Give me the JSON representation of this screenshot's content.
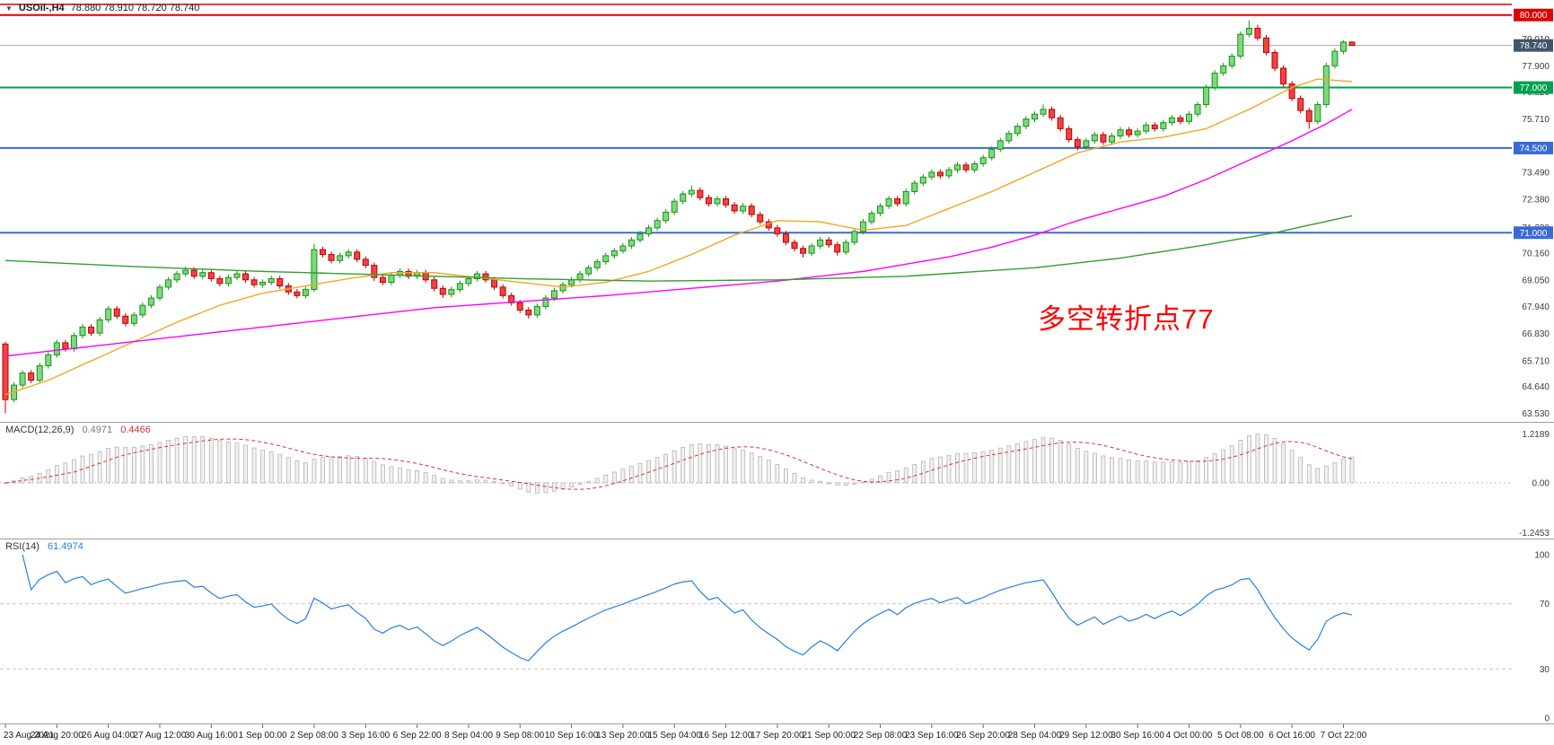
{
  "window": {
    "dropdown_icon": "▼",
    "symbol_title": "USOil-,H4",
    "ohlc_text": "78.880 78.910 78.720 78.740"
  },
  "colors": {
    "up_stroke": "#149414",
    "up_fill": "#7fd87f",
    "down_stroke": "#c00000",
    "down_fill": "#ef4444",
    "current_line": "#a8a8a8",
    "current_badge": "#42566b",
    "macd_hist_fill": "#f2f2f2",
    "macd_hist_stroke": "#b4b4b4",
    "macd_signal": "#e03030",
    "rsi_line": "#2a7fde",
    "level_dash": "#c8c8c8",
    "divider": "#9e9e9e",
    "axis_text": "#3a3a3a",
    "zero_dot": "#bbbbbb"
  },
  "chart_data": {
    "type": "candlestick",
    "symbol": "USOil-",
    "timeframe": "H4",
    "title": "USOil-,H4",
    "current_bar": {
      "open": 78.88,
      "high": 78.91,
      "low": 78.72,
      "close": 78.74
    },
    "price_axis": {
      "max": 80.62,
      "min": 63.18,
      "labels": [
        "79.010",
        "77.900",
        "76.820",
        "75.710",
        "73.490",
        "72.380",
        "71.220",
        "70.160",
        "69.050",
        "67.940",
        "66.830",
        "65.710",
        "64.640",
        "63.530"
      ]
    },
    "hlines": [
      {
        "price": 80.44,
        "label": "",
        "color": "#e00000",
        "width": 1.5
      },
      {
        "price": 80.0,
        "label": "80.000",
        "color": "#e00000",
        "width": 2
      },
      {
        "price": 77.0,
        "label": "77.000",
        "color": "#00a050",
        "width": 2
      },
      {
        "price": 74.5,
        "label": "74.500",
        "color": "#3a6ad4",
        "width": 2
      },
      {
        "price": 71.0,
        "label": "71.000",
        "color": "#3a6ad4",
        "width": 2
      }
    ],
    "current_price_line": {
      "price": 78.74,
      "label": "78.740"
    },
    "annotation": {
      "text": "多空转折点77",
      "color": "#ff0000"
    },
    "ma_lines": [
      {
        "name": "ma-fast-orange",
        "color": "#f5a623",
        "points": [
          [
            0,
            64.3
          ],
          [
            5,
            64.9
          ],
          [
            10,
            65.7
          ],
          [
            15,
            66.5
          ],
          [
            20,
            67.3
          ],
          [
            25,
            68.0
          ],
          [
            30,
            68.5
          ],
          [
            35,
            68.8
          ],
          [
            40,
            69.1
          ],
          [
            45,
            69.35
          ],
          [
            50,
            69.35
          ],
          [
            55,
            69.15
          ],
          [
            60,
            68.95
          ],
          [
            65,
            68.75
          ],
          [
            70,
            68.95
          ],
          [
            75,
            69.4
          ],
          [
            80,
            70.1
          ],
          [
            85,
            70.9
          ],
          [
            90,
            71.5
          ],
          [
            95,
            71.45
          ],
          [
            100,
            71.1
          ],
          [
            105,
            71.3
          ],
          [
            110,
            72.0
          ],
          [
            115,
            72.7
          ],
          [
            120,
            73.5
          ],
          [
            125,
            74.3
          ],
          [
            130,
            74.75
          ],
          [
            135,
            74.95
          ],
          [
            140,
            75.3
          ],
          [
            145,
            76.1
          ],
          [
            150,
            77.0
          ],
          [
            153,
            77.35
          ],
          [
            157,
            77.25
          ]
        ]
      },
      {
        "name": "ma-mid-magenta",
        "color": "#ff00ff",
        "points": [
          [
            0,
            65.9
          ],
          [
            10,
            66.3
          ],
          [
            20,
            66.7
          ],
          [
            30,
            67.1
          ],
          [
            40,
            67.5
          ],
          [
            50,
            67.9
          ],
          [
            60,
            68.15
          ],
          [
            70,
            68.4
          ],
          [
            80,
            68.7
          ],
          [
            90,
            69.0
          ],
          [
            100,
            69.4
          ],
          [
            110,
            70.0
          ],
          [
            115,
            70.4
          ],
          [
            120,
            70.9
          ],
          [
            125,
            71.5
          ],
          [
            130,
            72.0
          ],
          [
            135,
            72.5
          ],
          [
            140,
            73.2
          ],
          [
            145,
            74.0
          ],
          [
            150,
            74.8
          ],
          [
            154,
            75.5
          ],
          [
            157,
            76.1
          ]
        ]
      },
      {
        "name": "ma-slow-green",
        "color": "#33a02c",
        "points": [
          [
            0,
            69.85
          ],
          [
            15,
            69.6
          ],
          [
            30,
            69.4
          ],
          [
            45,
            69.25
          ],
          [
            60,
            69.1
          ],
          [
            75,
            69.0
          ],
          [
            90,
            69.05
          ],
          [
            105,
            69.2
          ],
          [
            120,
            69.55
          ],
          [
            130,
            69.95
          ],
          [
            140,
            70.5
          ],
          [
            148,
            71.0
          ],
          [
            157,
            71.7
          ]
        ]
      }
    ],
    "candles": [
      [
        66.4,
        66.5,
        63.53,
        64.1
      ],
      [
        64.1,
        64.82,
        63.98,
        64.7
      ],
      [
        64.7,
        65.32,
        64.58,
        65.2
      ],
      [
        65.2,
        65.32,
        64.78,
        64.9
      ],
      [
        64.9,
        65.62,
        64.78,
        65.5
      ],
      [
        65.5,
        66.07,
        65.38,
        65.95
      ],
      [
        65.95,
        66.57,
        65.83,
        66.45
      ],
      [
        66.45,
        66.57,
        66.08,
        66.2
      ],
      [
        66.2,
        66.87,
        66.08,
        66.75
      ],
      [
        66.75,
        67.22,
        66.63,
        67.1
      ],
      [
        67.1,
        67.22,
        66.73,
        66.85
      ],
      [
        66.85,
        67.52,
        66.73,
        67.4
      ],
      [
        67.4,
        67.97,
        67.28,
        67.85
      ],
      [
        67.85,
        67.97,
        67.43,
        67.55
      ],
      [
        67.55,
        67.67,
        67.13,
        67.25
      ],
      [
        67.25,
        67.72,
        67.13,
        67.6
      ],
      [
        67.6,
        68.12,
        67.48,
        68.0
      ],
      [
        68.0,
        68.42,
        67.88,
        68.3
      ],
      [
        68.3,
        68.87,
        68.18,
        68.75
      ],
      [
        68.75,
        69.17,
        68.63,
        69.05
      ],
      [
        69.05,
        69.42,
        68.93,
        69.3
      ],
      [
        69.3,
        69.6,
        69.18,
        69.45
      ],
      [
        69.45,
        69.57,
        69.08,
        69.2
      ],
      [
        69.2,
        69.47,
        69.08,
        69.35
      ],
      [
        69.35,
        69.47,
        68.98,
        69.1
      ],
      [
        69.1,
        69.22,
        68.78,
        68.9
      ],
      [
        68.9,
        69.27,
        68.78,
        69.15
      ],
      [
        69.15,
        69.42,
        69.03,
        69.3
      ],
      [
        69.3,
        69.42,
        68.93,
        69.05
      ],
      [
        69.05,
        69.17,
        68.73,
        68.85
      ],
      [
        68.85,
        69.07,
        68.73,
        68.95
      ],
      [
        68.95,
        69.22,
        68.83,
        69.1
      ],
      [
        69.1,
        69.22,
        68.68,
        68.8
      ],
      [
        68.8,
        68.92,
        68.43,
        68.55
      ],
      [
        68.55,
        68.67,
        68.28,
        68.4
      ],
      [
        68.4,
        68.77,
        68.28,
        68.65
      ],
      [
        68.65,
        70.55,
        68.55,
        70.3
      ],
      [
        70.3,
        70.42,
        69.98,
        70.1
      ],
      [
        70.1,
        70.22,
        69.73,
        69.85
      ],
      [
        69.85,
        70.17,
        69.73,
        70.05
      ],
      [
        70.05,
        70.32,
        69.93,
        70.2
      ],
      [
        70.2,
        70.32,
        69.78,
        69.9
      ],
      [
        69.9,
        70.02,
        69.53,
        69.65
      ],
      [
        69.65,
        69.77,
        69.0,
        69.15
      ],
      [
        69.15,
        69.27,
        68.83,
        68.95
      ],
      [
        68.95,
        69.37,
        68.83,
        69.25
      ],
      [
        69.25,
        69.52,
        69.13,
        69.4
      ],
      [
        69.4,
        69.52,
        69.08,
        69.2
      ],
      [
        69.2,
        69.47,
        69.08,
        69.35
      ],
      [
        69.35,
        69.47,
        68.93,
        69.05
      ],
      [
        69.05,
        69.17,
        68.58,
        68.7
      ],
      [
        68.7,
        68.82,
        68.3,
        68.45
      ],
      [
        68.45,
        68.77,
        68.33,
        68.65
      ],
      [
        68.65,
        69.02,
        68.53,
        68.9
      ],
      [
        68.9,
        69.22,
        68.78,
        69.1
      ],
      [
        69.1,
        69.42,
        68.98,
        69.3
      ],
      [
        69.3,
        69.42,
        68.93,
        69.05
      ],
      [
        69.05,
        69.17,
        68.63,
        68.75
      ],
      [
        68.75,
        68.87,
        68.28,
        68.4
      ],
      [
        68.4,
        68.52,
        67.98,
        68.1
      ],
      [
        68.1,
        68.22,
        67.68,
        67.8
      ],
      [
        67.8,
        67.92,
        67.45,
        67.6
      ],
      [
        67.6,
        68.07,
        67.48,
        67.95
      ],
      [
        67.95,
        68.42,
        67.83,
        68.3
      ],
      [
        68.3,
        68.72,
        68.18,
        68.6
      ],
      [
        68.6,
        68.97,
        68.48,
        68.85
      ],
      [
        68.85,
        69.17,
        68.73,
        69.05
      ],
      [
        69.05,
        69.42,
        68.93,
        69.3
      ],
      [
        69.3,
        69.67,
        69.18,
        69.55
      ],
      [
        69.55,
        69.92,
        69.43,
        69.8
      ],
      [
        69.8,
        70.17,
        69.68,
        70.05
      ],
      [
        70.05,
        70.37,
        69.93,
        70.25
      ],
      [
        70.25,
        70.57,
        70.13,
        70.45
      ],
      [
        70.45,
        70.82,
        70.33,
        70.7
      ],
      [
        70.7,
        71.07,
        70.58,
        70.95
      ],
      [
        70.95,
        71.32,
        70.83,
        71.2
      ],
      [
        71.2,
        71.62,
        71.08,
        71.5
      ],
      [
        71.5,
        71.97,
        71.38,
        71.85
      ],
      [
        71.85,
        72.42,
        71.73,
        72.3
      ],
      [
        72.3,
        72.72,
        72.18,
        72.6
      ],
      [
        72.6,
        72.95,
        72.48,
        72.75
      ],
      [
        72.75,
        72.87,
        72.33,
        72.45
      ],
      [
        72.45,
        72.57,
        72.08,
        72.2
      ],
      [
        72.2,
        72.52,
        72.08,
        72.4
      ],
      [
        72.4,
        72.52,
        72.03,
        72.15
      ],
      [
        72.15,
        72.27,
        71.78,
        71.9
      ],
      [
        71.9,
        72.22,
        71.78,
        72.1
      ],
      [
        72.1,
        72.22,
        71.63,
        71.75
      ],
      [
        71.75,
        71.87,
        71.33,
        71.45
      ],
      [
        71.45,
        71.57,
        71.08,
        71.2
      ],
      [
        71.2,
        71.32,
        70.83,
        70.95
      ],
      [
        70.95,
        71.07,
        70.48,
        70.6
      ],
      [
        70.6,
        70.72,
        70.23,
        70.35
      ],
      [
        70.35,
        70.47,
        69.97,
        70.15
      ],
      [
        70.15,
        70.57,
        70.03,
        70.45
      ],
      [
        70.45,
        70.82,
        70.33,
        70.7
      ],
      [
        70.7,
        70.82,
        70.38,
        70.5
      ],
      [
        70.5,
        70.62,
        70.05,
        70.2
      ],
      [
        70.2,
        70.72,
        70.08,
        70.6
      ],
      [
        70.6,
        71.17,
        70.48,
        71.05
      ],
      [
        71.05,
        71.57,
        70.93,
        71.45
      ],
      [
        71.45,
        71.92,
        71.33,
        71.8
      ],
      [
        71.8,
        72.22,
        71.68,
        72.1
      ],
      [
        72.1,
        72.52,
        71.98,
        72.4
      ],
      [
        72.4,
        72.52,
        72.08,
        72.2
      ],
      [
        72.2,
        72.82,
        72.08,
        72.7
      ],
      [
        72.7,
        73.17,
        72.58,
        73.05
      ],
      [
        73.05,
        73.42,
        72.93,
        73.3
      ],
      [
        73.3,
        73.62,
        73.18,
        73.5
      ],
      [
        73.5,
        73.62,
        73.23,
        73.35
      ],
      [
        73.35,
        73.72,
        73.23,
        73.6
      ],
      [
        73.6,
        73.92,
        73.48,
        73.8
      ],
      [
        73.8,
        73.92,
        73.48,
        73.6
      ],
      [
        73.6,
        73.97,
        73.48,
        73.85
      ],
      [
        73.85,
        74.22,
        73.73,
        74.1
      ],
      [
        74.1,
        74.57,
        73.98,
        74.45
      ],
      [
        74.45,
        74.92,
        74.33,
        74.8
      ],
      [
        74.8,
        75.22,
        74.68,
        75.1
      ],
      [
        75.1,
        75.52,
        74.98,
        75.4
      ],
      [
        75.4,
        75.82,
        75.28,
        75.7
      ],
      [
        75.7,
        76.02,
        75.58,
        75.9
      ],
      [
        75.9,
        76.3,
        75.78,
        76.1
      ],
      [
        76.1,
        76.22,
        75.63,
        75.75
      ],
      [
        75.75,
        75.87,
        75.18,
        75.3
      ],
      [
        75.3,
        75.42,
        74.73,
        74.85
      ],
      [
        74.85,
        74.97,
        74.4,
        74.55
      ],
      [
        74.55,
        74.92,
        74.43,
        74.8
      ],
      [
        74.8,
        75.17,
        74.68,
        75.05
      ],
      [
        75.05,
        75.17,
        74.63,
        74.75
      ],
      [
        74.75,
        75.12,
        74.63,
        75.0
      ],
      [
        75.0,
        75.37,
        74.88,
        75.25
      ],
      [
        75.25,
        75.37,
        74.93,
        75.05
      ],
      [
        75.05,
        75.32,
        74.93,
        75.2
      ],
      [
        75.2,
        75.57,
        75.08,
        75.45
      ],
      [
        75.45,
        75.57,
        75.18,
        75.3
      ],
      [
        75.3,
        75.67,
        75.18,
        75.55
      ],
      [
        75.55,
        75.87,
        75.43,
        75.75
      ],
      [
        75.75,
        75.87,
        75.48,
        75.6
      ],
      [
        75.6,
        76.02,
        75.48,
        75.9
      ],
      [
        75.9,
        76.42,
        75.78,
        76.3
      ],
      [
        76.3,
        77.12,
        76.18,
        77.0
      ],
      [
        77.0,
        77.72,
        76.88,
        77.6
      ],
      [
        77.6,
        78.02,
        77.48,
        77.9
      ],
      [
        77.9,
        78.42,
        77.78,
        78.3
      ],
      [
        78.3,
        79.32,
        78.18,
        79.2
      ],
      [
        79.2,
        79.78,
        79.08,
        79.45
      ],
      [
        79.45,
        79.6,
        78.93,
        79.05
      ],
      [
        79.05,
        79.17,
        78.33,
        78.45
      ],
      [
        78.45,
        78.57,
        77.68,
        77.8
      ],
      [
        77.8,
        77.92,
        77.03,
        77.15
      ],
      [
        77.15,
        77.27,
        76.43,
        76.55
      ],
      [
        76.55,
        76.67,
        75.93,
        76.05
      ],
      [
        76.05,
        76.17,
        75.3,
        75.6
      ],
      [
        75.6,
        76.42,
        75.48,
        76.3
      ],
      [
        76.3,
        78.02,
        76.18,
        77.9
      ],
      [
        77.9,
        78.62,
        77.78,
        78.5
      ],
      [
        78.5,
        78.95,
        78.38,
        78.88
      ],
      [
        78.88,
        78.91,
        78.72,
        78.74
      ]
    ],
    "time_axis": {
      "step": 6,
      "labels": [
        "23 Aug 2021",
        "24 Aug 20:00",
        "26 Aug 04:00",
        "27 Aug 12:00",
        "30 Aug 16:00",
        "1 Sep 00:00",
        "2 Sep 08:00",
        "3 Sep 16:00",
        "6 Sep 22:00",
        "8 Sep 04:00",
        "9 Sep 08:00",
        "10 Sep 16:00",
        "13 Sep 20:00",
        "15 Sep 04:00",
        "16 Sep 12:00",
        "17 Sep 20:00",
        "21 Sep 00:00",
        "22 Sep 08:00",
        "23 Sep 16:00",
        "26 Sep 20:00",
        "28 Sep 04:00",
        "29 Sep 12:00",
        "30 Sep 16:00",
        "4 Oct 00:00",
        "5 Oct 08:00",
        "6 Oct 16:00",
        "7 Oct 22:00"
      ]
    },
    "macd": {
      "label": "MACD(12,26,9)",
      "main_value": "0.4971",
      "signal_value": "0.4466",
      "params": {
        "fast": 12,
        "slow": 26,
        "signal": 9
      },
      "axis": {
        "max": 1.2189,
        "min": -1.2453,
        "labels": [
          "1.2189",
          "0.00",
          "-1.2453"
        ]
      }
    },
    "rsi": {
      "label": "RSI(14)",
      "value": "61.4974",
      "period": 14,
      "levels": [
        70,
        30
      ],
      "axis_labels": [
        "100",
        "70",
        "30",
        "0"
      ]
    }
  }
}
